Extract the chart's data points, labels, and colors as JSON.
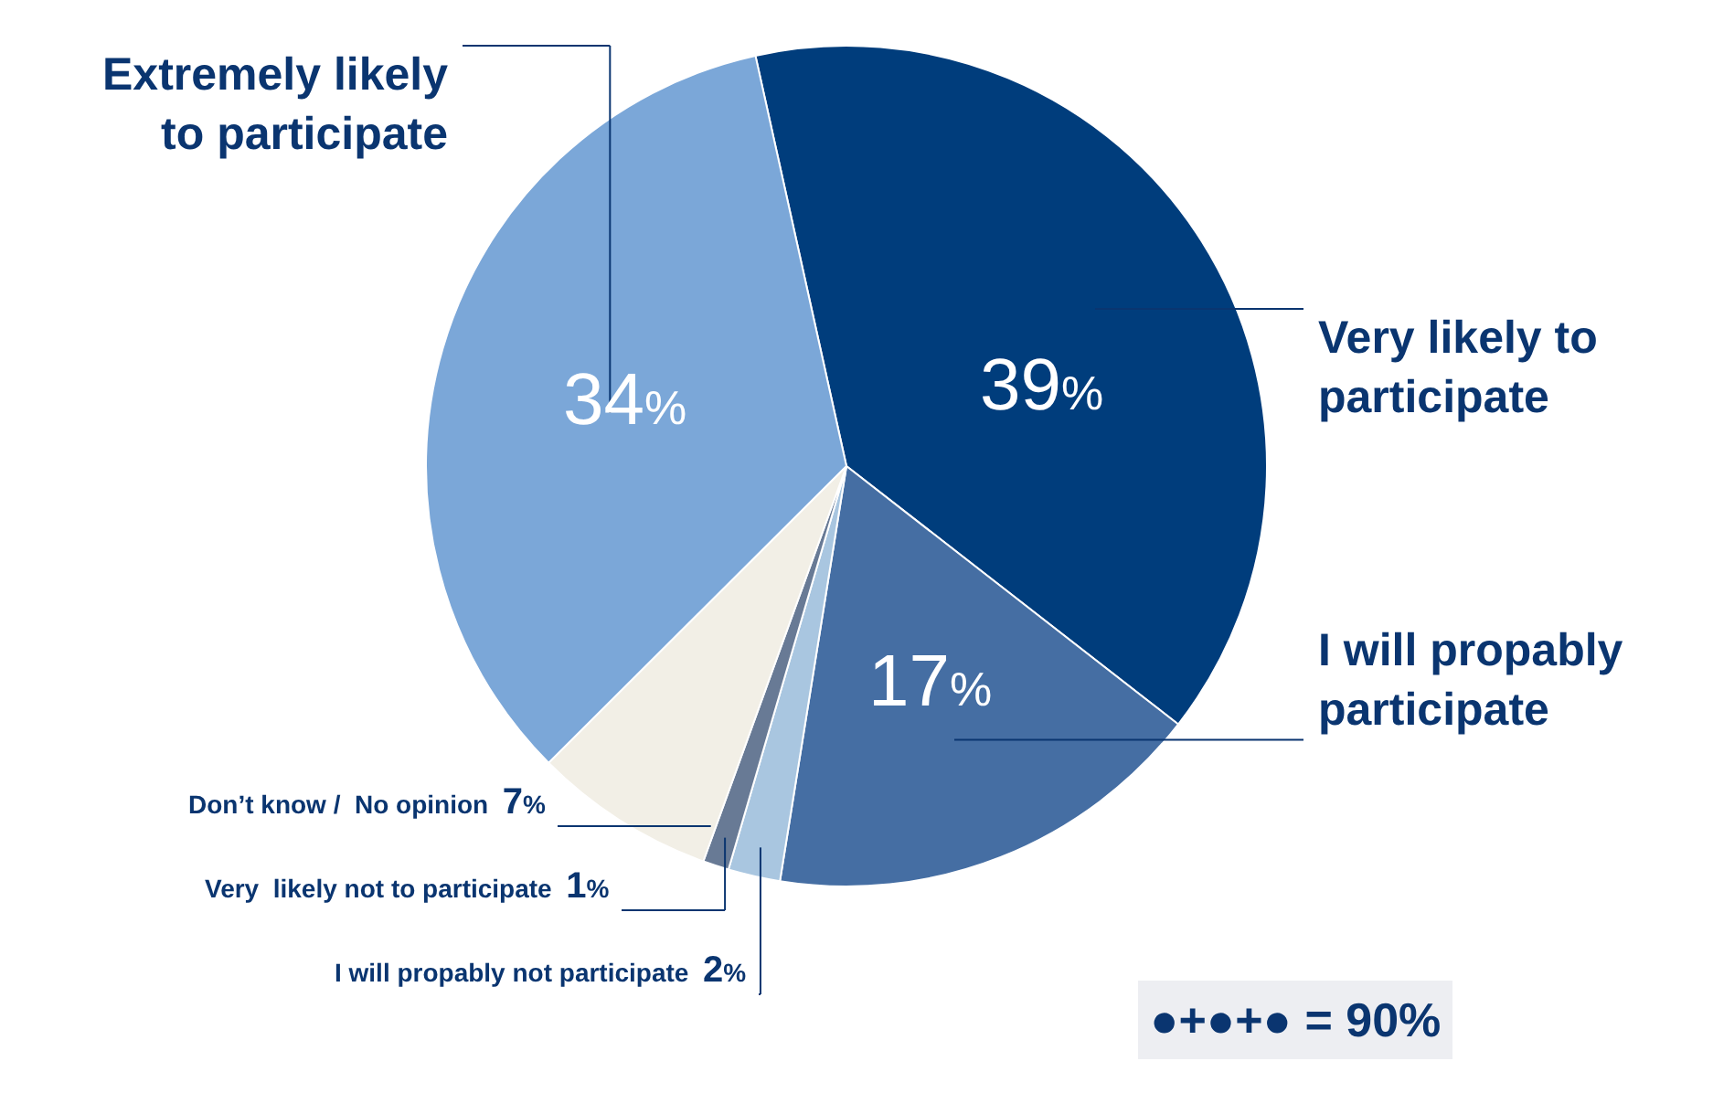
{
  "chart_data": {
    "type": "pie",
    "categories": [
      "Very likely to participate",
      "I will propably participate",
      "I will propably not participate",
      "Very  likely not to participate",
      "Don’t know /  No opinion",
      "Extremely likely to participate"
    ],
    "values": [
      39,
      17,
      2,
      1,
      7,
      34
    ],
    "colors": [
      "#003d7c",
      "#456ea3",
      "#a9c6e0",
      "#687a95",
      "#f2efe6",
      "#7ba7d8"
    ],
    "value_labels": [
      "39%",
      "17%",
      "2%",
      "1%",
      "7%",
      "34%"
    ],
    "legend": false,
    "annotations": [
      "●+●+● = 90%"
    ]
  }
}
